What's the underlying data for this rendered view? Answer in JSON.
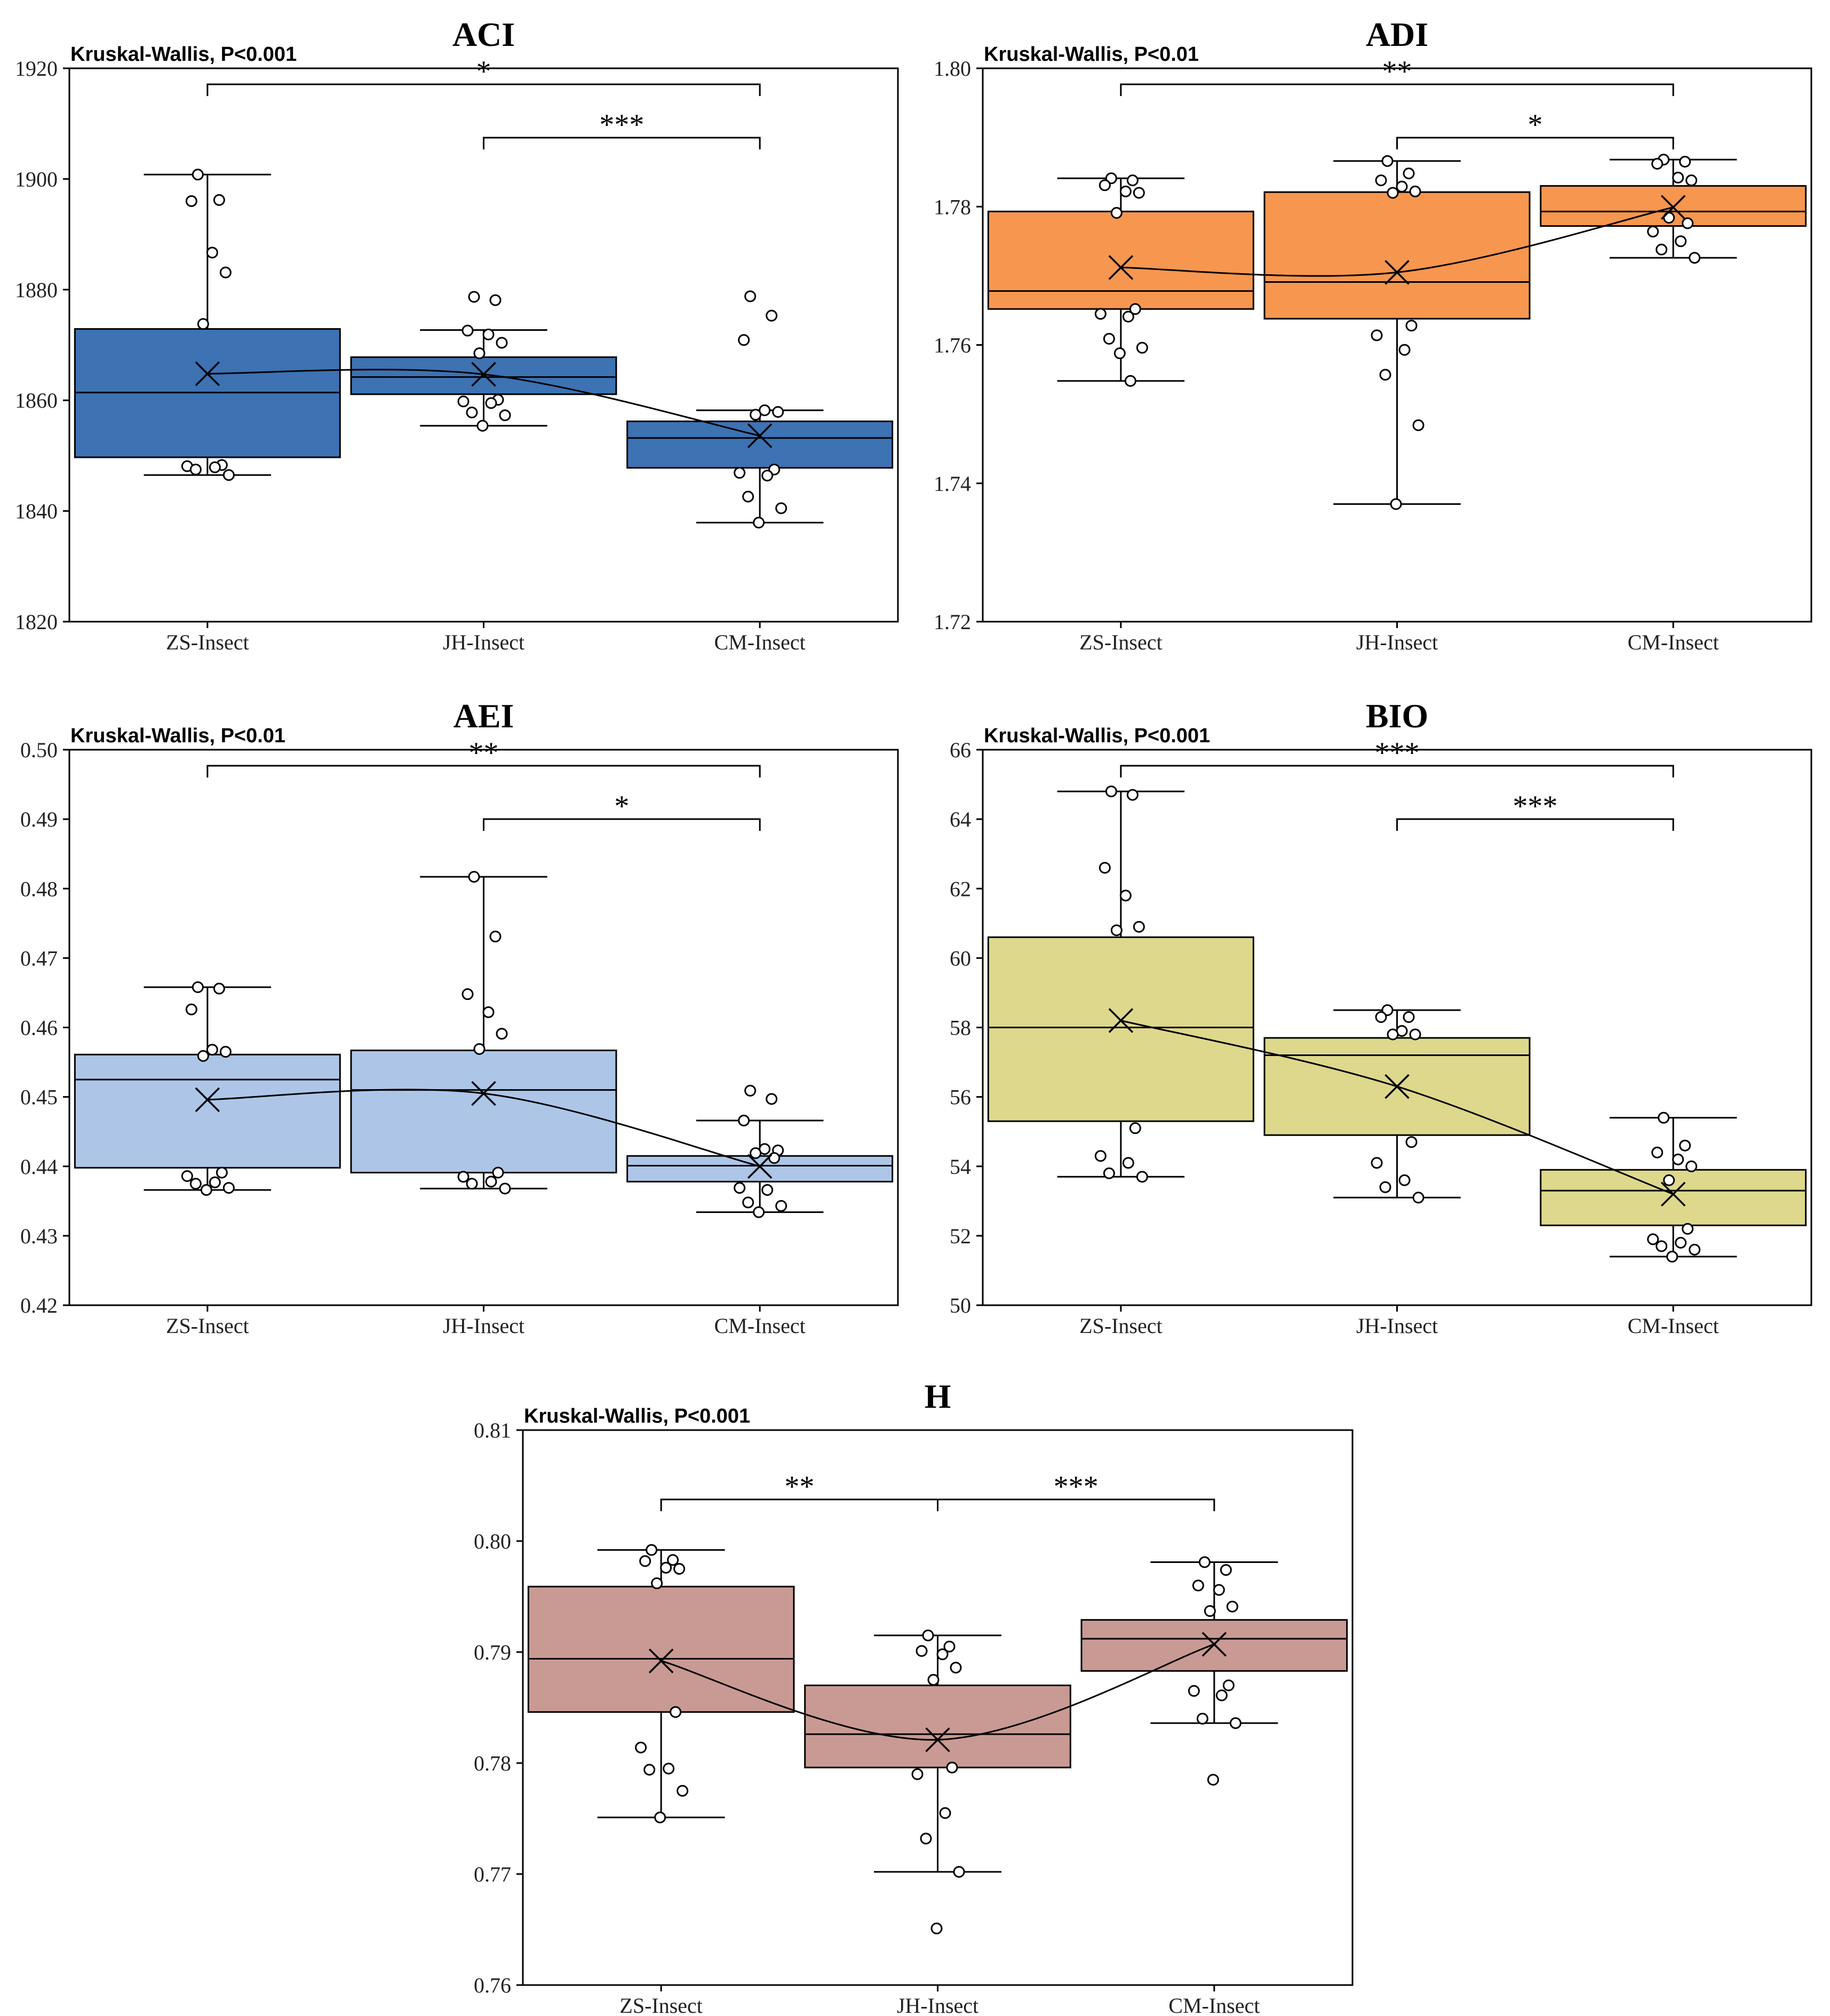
{
  "chart_data": [
    {
      "type": "boxplot",
      "title": "ACI",
      "test_label": "Kruskal-Wallis, P<0.001",
      "categories": [
        "ZS-Insect",
        "JH-Insect",
        "CM-Insect"
      ],
      "ylim": [
        1820,
        1920
      ],
      "yticks": [
        1820,
        1840,
        1860,
        1880,
        1900,
        1920
      ],
      "fill_color": "#3d72b3",
      "boxes": [
        {
          "min": 1846.5,
          "q1": 1849.7,
          "median": 1861.4,
          "q3": 1872.9,
          "max": 1900.8,
          "mean": 1864.8
        },
        {
          "min": 1855.4,
          "q1": 1861.1,
          "median": 1864.2,
          "q3": 1867.8,
          "max": 1872.7,
          "mean": 1864.7
        },
        {
          "min": 1837.9,
          "q1": 1847.8,
          "median": 1853.2,
          "q3": 1856.2,
          "max": 1858.2,
          "mean": 1853.6
        }
      ],
      "points": [
        [
          1900.8,
          1896.2,
          1896.0,
          1886.7,
          1883.1,
          1873.8,
          1848.3,
          1848.1,
          1847.9,
          1847.5,
          1846.5
        ],
        [
          1878.7,
          1878.1,
          1872.6,
          1871.9,
          1870.4,
          1868.5,
          1860.1,
          1859.8,
          1859.5,
          1857.8,
          1857.3,
          1855.4
        ],
        [
          1878.8,
          1875.3,
          1870.9,
          1858.2,
          1857.9,
          1857.4,
          1847.5,
          1846.9,
          1846.4,
          1842.6,
          1840.5,
          1837.9
        ]
      ],
      "comparisons": [
        {
          "from": 0,
          "to": 2,
          "label": "*",
          "level": 1
        },
        {
          "from": 1,
          "to": 2,
          "label": "***",
          "level": 0
        }
      ]
    },
    {
      "type": "boxplot",
      "title": "ADI",
      "test_label": "Kruskal-Wallis, P<0.01",
      "categories": [
        "ZS-Insect",
        "JH-Insect",
        "CM-Insect"
      ],
      "ylim": [
        1.72,
        1.8
      ],
      "yticks": [
        1.72,
        1.74,
        1.76,
        1.78,
        1.8
      ],
      "fill_color": "#f7964f",
      "boxes": [
        {
          "min": 1.7548,
          "q1": 1.7652,
          "median": 1.7678,
          "q3": 1.7793,
          "max": 1.7841,
          "mean": 1.7712
        },
        {
          "min": 1.737,
          "q1": 1.7638,
          "median": 1.7691,
          "q3": 1.7821,
          "max": 1.7866,
          "mean": 1.7705
        },
        {
          "min": 1.7726,
          "q1": 1.7772,
          "median": 1.7793,
          "q3": 1.783,
          "max": 1.7868,
          "mean": 1.7799
        }
      ],
      "points": [
        [
          1.7841,
          1.7838,
          1.7831,
          1.7822,
          1.782,
          1.7791,
          1.7652,
          1.7645,
          1.7641,
          1.7609,
          1.7596,
          1.7588,
          1.7548
        ],
        [
          1.7866,
          1.7848,
          1.7838,
          1.7829,
          1.7822,
          1.782,
          1.7628,
          1.7614,
          1.7593,
          1.7557,
          1.7484,
          1.737
        ],
        [
          1.7868,
          1.7865,
          1.7862,
          1.7842,
          1.7838,
          1.7784,
          1.7776,
          1.7764,
          1.775,
          1.7738,
          1.7726
        ]
      ],
      "comparisons": [
        {
          "from": 0,
          "to": 2,
          "label": "**",
          "level": 1
        },
        {
          "from": 1,
          "to": 2,
          "label": "*",
          "level": 0
        }
      ]
    },
    {
      "type": "boxplot",
      "title": "AEI",
      "test_label": "Kruskal-Wallis, P<0.01",
      "categories": [
        "ZS-Insect",
        "JH-Insect",
        "CM-Insect"
      ],
      "ylim": [
        0.42,
        0.5
      ],
      "yticks": [
        0.42,
        0.43,
        0.44,
        0.45,
        0.46,
        0.47,
        0.48,
        0.49,
        0.5
      ],
      "fill_color": "#adc6e8",
      "boxes": [
        {
          "min": 0.4366,
          "q1": 0.4398,
          "median": 0.4525,
          "q3": 0.4561,
          "max": 0.4658,
          "mean": 0.4496
        },
        {
          "min": 0.4368,
          "q1": 0.4391,
          "median": 0.451,
          "q3": 0.4567,
          "max": 0.4817,
          "mean": 0.4505
        },
        {
          "min": 0.4334,
          "q1": 0.4378,
          "median": 0.4401,
          "q3": 0.4415,
          "max": 0.4466,
          "mean": 0.44
        }
      ],
      "points": [
        [
          0.4658,
          0.4656,
          0.4626,
          0.4568,
          0.4565,
          0.4559,
          0.4391,
          0.4386,
          0.4377,
          0.4375,
          0.4369,
          0.4366
        ],
        [
          0.4817,
          0.4731,
          0.4648,
          0.4622,
          0.4591,
          0.4569,
          0.4391,
          0.4385,
          0.4378,
          0.4375,
          0.4368
        ],
        [
          0.4509,
          0.4497,
          0.4466,
          0.4425,
          0.4423,
          0.4419,
          0.4412,
          0.4369,
          0.4366,
          0.4348,
          0.4343,
          0.4334
        ]
      ],
      "comparisons": [
        {
          "from": 0,
          "to": 2,
          "label": "**",
          "level": 1
        },
        {
          "from": 1,
          "to": 2,
          "label": "*",
          "level": 0
        }
      ]
    },
    {
      "type": "boxplot",
      "title": "BIO",
      "test_label": "Kruskal-Wallis, P<0.001",
      "categories": [
        "ZS-Insect",
        "JH-Insect",
        "CM-Insect"
      ],
      "ylim": [
        50,
        66
      ],
      "yticks": [
        50,
        52,
        54,
        56,
        58,
        60,
        62,
        64,
        66
      ],
      "fill_color": "#ddd88b",
      "boxes": [
        {
          "min": 53.7,
          "q1": 55.3,
          "median": 58.0,
          "q3": 60.6,
          "max": 64.8,
          "mean": 58.2
        },
        {
          "min": 53.1,
          "q1": 54.9,
          "median": 57.2,
          "q3": 57.7,
          "max": 58.5,
          "mean": 56.3
        },
        {
          "min": 51.4,
          "q1": 52.3,
          "median": 53.3,
          "q3": 53.9,
          "max": 55.4,
          "mean": 53.2
        }
      ],
      "points": [
        [
          64.8,
          64.7,
          62.6,
          61.8,
          60.9,
          60.8,
          55.1,
          54.3,
          54.1,
          53.8,
          53.7
        ],
        [
          58.5,
          58.3,
          58.3,
          57.9,
          57.8,
          57.8,
          54.7,
          54.1,
          53.6,
          53.4,
          53.1
        ],
        [
          55.4,
          54.6,
          54.4,
          54.2,
          54.0,
          53.6,
          52.2,
          51.9,
          51.8,
          51.7,
          51.6,
          51.4
        ]
      ],
      "comparisons": [
        {
          "from": 0,
          "to": 2,
          "label": "***",
          "level": 1
        },
        {
          "from": 1,
          "to": 2,
          "label": "***",
          "level": 0
        }
      ]
    },
    {
      "type": "boxplot",
      "title": "H",
      "test_label": "Kruskal-Wallis, P<0.001",
      "categories": [
        "ZS-Insect",
        "JH-Insect",
        "CM-Insect"
      ],
      "ylim": [
        0.76,
        0.81
      ],
      "yticks": [
        0.76,
        0.77,
        0.78,
        0.79,
        0.8,
        0.81
      ],
      "fill_color": "#c99a93",
      "boxes": [
        {
          "min": 0.7751,
          "q1": 0.7846,
          "median": 0.7894,
          "q3": 0.7959,
          "max": 0.7992,
          "mean": 0.7892
        },
        {
          "min": 0.7702,
          "q1": 0.7796,
          "median": 0.7826,
          "q3": 0.787,
          "max": 0.7915,
          "mean": 0.7821
        },
        {
          "min": 0.7836,
          "q1": 0.7883,
          "median": 0.7912,
          "q3": 0.7929,
          "max": 0.7981,
          "mean": 0.7907
        }
      ],
      "points": [
        [
          0.7992,
          0.7983,
          0.7982,
          0.7976,
          0.7975,
          0.7962,
          0.7846,
          0.7814,
          0.7795,
          0.7794,
          0.7775,
          0.7751
        ],
        [
          0.7915,
          0.7905,
          0.7901,
          0.7898,
          0.7886,
          0.7875,
          0.7796,
          0.779,
          0.7755,
          0.7732,
          0.7702,
          0.7651
        ],
        [
          0.7981,
          0.7974,
          0.796,
          0.7956,
          0.7941,
          0.7937,
          0.787,
          0.7865,
          0.7861,
          0.784,
          0.7836,
          0.7785
        ]
      ],
      "comparisons": [
        {
          "from": 0,
          "to": 1,
          "label": "**",
          "level": 0
        },
        {
          "from": 1,
          "to": 2,
          "label": "***",
          "level": 0
        }
      ]
    }
  ]
}
